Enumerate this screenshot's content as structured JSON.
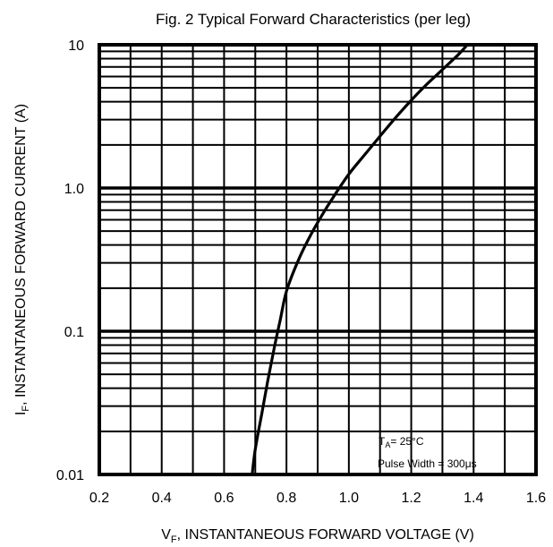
{
  "chart_data": {
    "type": "line",
    "title": "Fig. 2 Typical Forward Characteristics (per leg)",
    "xlabel": {
      "main": "V",
      "sub": "F",
      "rest": ", INSTANTANEOUS FORWARD VOLTAGE (V)"
    },
    "ylabel": {
      "main": "I",
      "sub": "F",
      "rest": ", INSTANTANEOUS FORWARD CURRENT (A)"
    },
    "xlim": [
      0.2,
      1.6
    ],
    "ylim": [
      0.01,
      10
    ],
    "yscale": "log",
    "grid": true,
    "x_ticks": [
      0.2,
      0.4,
      0.6,
      0.8,
      1.0,
      1.2,
      1.4,
      1.6
    ],
    "x_tick_labels": [
      "0.2",
      "0.4",
      "0.6",
      "0.8",
      "1.0",
      "1.2",
      "1.4",
      "1.6"
    ],
    "y_ticks": [
      0.01,
      0.1,
      1,
      10
    ],
    "y_tick_labels": [
      "0.01",
      "0.1",
      "1.0",
      "10"
    ],
    "annotations": {
      "ta_main": "T",
      "ta_sub": "A",
      "ta_rest": "= 25°C",
      "pulse": "Pulse Width = 300μs"
    },
    "series": [
      {
        "x": [
          0.69,
          0.7,
          0.72,
          0.74,
          0.76,
          0.78,
          0.8,
          0.84,
          0.88,
          0.92,
          0.96,
          1.0,
          1.05,
          1.1,
          1.15,
          1.2,
          1.25,
          1.3,
          1.35,
          1.38
        ],
        "y": [
          0.01,
          0.015,
          0.026,
          0.045,
          0.075,
          0.12,
          0.19,
          0.32,
          0.48,
          0.68,
          0.93,
          1.25,
          1.7,
          2.3,
          3.1,
          4.1,
          5.3,
          6.7,
          8.5,
          10.0
        ]
      }
    ]
  }
}
